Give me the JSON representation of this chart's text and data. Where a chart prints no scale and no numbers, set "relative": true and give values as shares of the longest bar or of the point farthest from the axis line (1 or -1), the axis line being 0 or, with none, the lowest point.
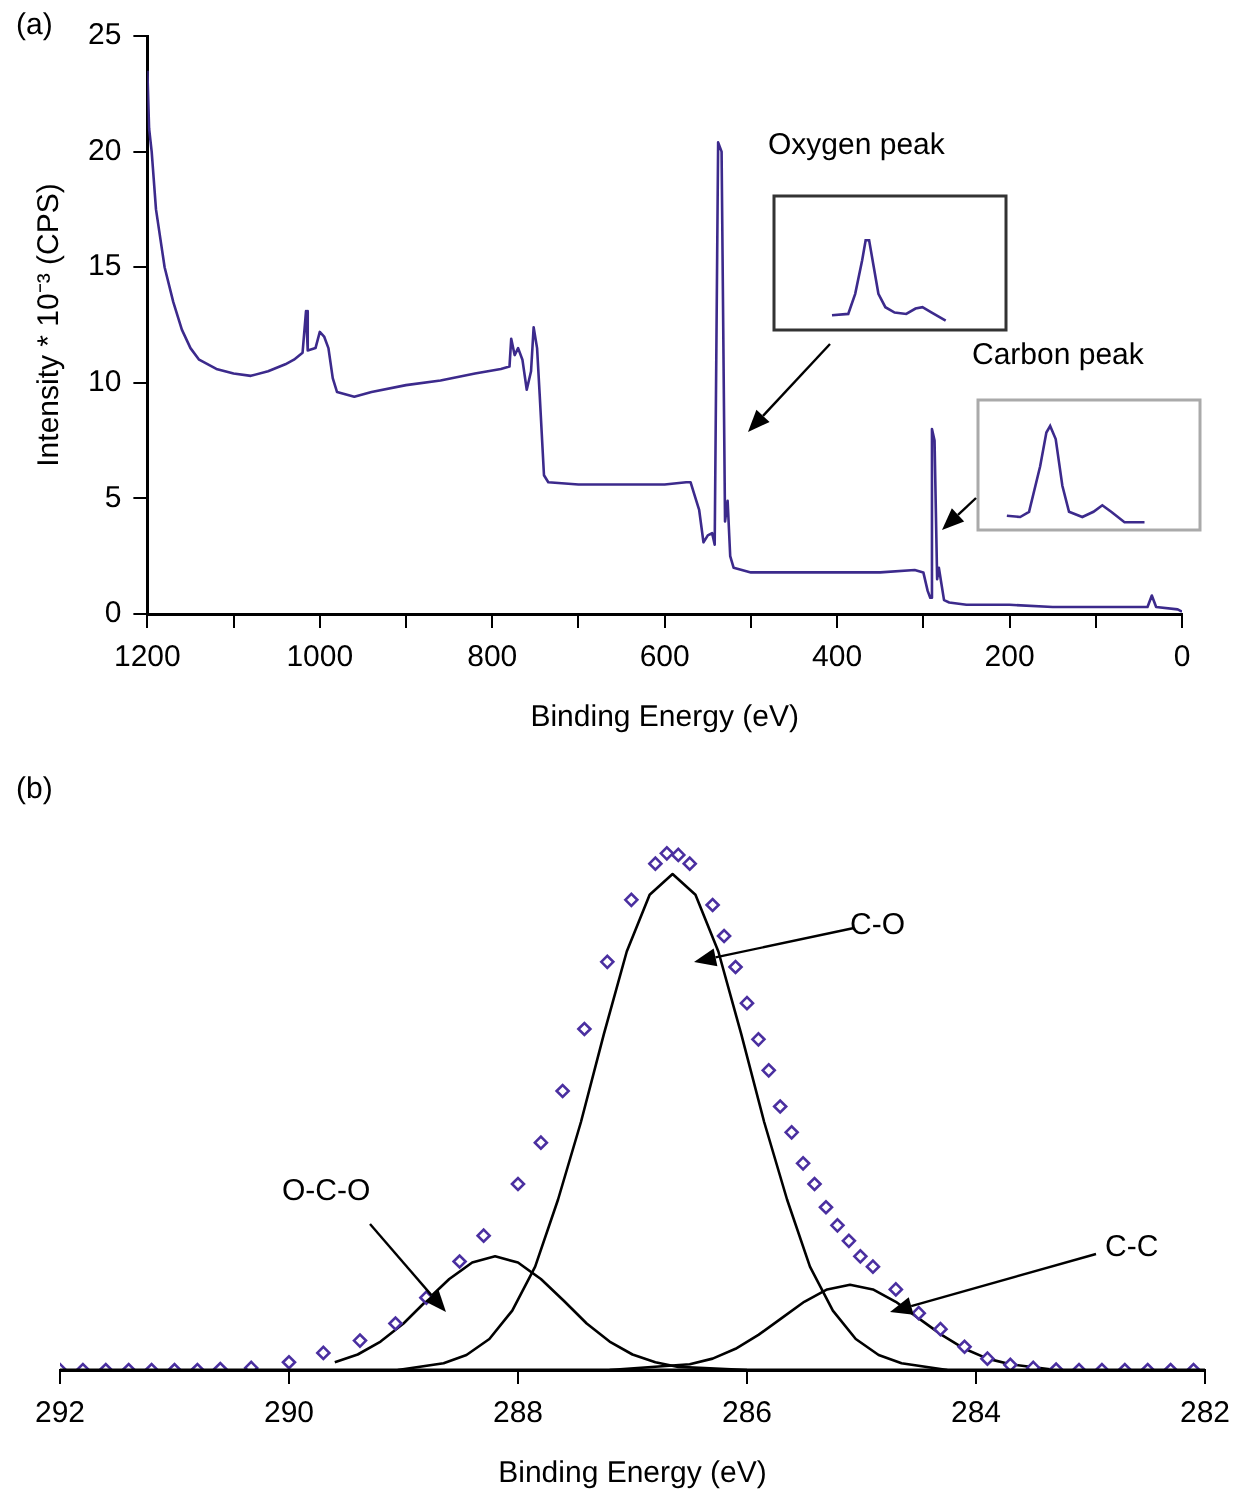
{
  "chart_data": [
    {
      "type": "line",
      "title": "(a)",
      "xlabel": "Binding Energy (eV)",
      "ylabel": "Intensity * 10⁻³ (CPS)",
      "xlim": [
        1200,
        0
      ],
      "xticks": [
        1200,
        {
          "value": 1100,
          "label": null
        },
        1000,
        {
          "value": 900,
          "label": null
        },
        800,
        {
          "value": 700,
          "label": null
        },
        600,
        {
          "value": 500,
          "label": null
        },
        400,
        {
          "value": 300,
          "label": null
        },
        200,
        {
          "value": 100,
          "label": null
        },
        0
      ],
      "ylim": [
        0,
        25
      ],
      "yticks": [
        0,
        5,
        10,
        15,
        20,
        25
      ],
      "annotations": [
        "Oxygen peak",
        "Carbon peak"
      ],
      "series": [
        {
          "color": "#3c2a8c",
          "x": [
            1200,
            1198,
            1195,
            1190,
            1180,
            1170,
            1160,
            1150,
            1140,
            1120,
            1100,
            1080,
            1060,
            1040,
            1030,
            1020,
            1016,
            1014,
            1005,
            1000,
            995,
            990,
            985,
            980,
            960,
            940,
            900,
            860,
            820,
            790,
            780,
            778,
            774,
            770,
            765,
            760,
            755,
            752,
            748,
            745,
            740,
            735,
            700,
            650,
            600,
            575,
            570,
            565,
            560,
            555,
            550,
            545,
            542,
            538,
            534,
            530,
            527,
            524,
            520,
            500,
            450,
            400,
            350,
            310,
            300,
            295,
            292,
            290,
            287,
            284,
            282,
            279,
            276,
            270,
            250,
            200,
            150,
            100,
            40,
            35,
            30,
            5,
            0
          ],
          "values": [
            23.5,
            21,
            20,
            17.5,
            15,
            13.5,
            12.3,
            11.5,
            11,
            10.6,
            10.4,
            10.3,
            10.5,
            10.8,
            11,
            11.3,
            13.1,
            11.4,
            11.5,
            12.2,
            12,
            11.5,
            10.2,
            9.6,
            9.4,
            9.6,
            9.9,
            10.1,
            10.4,
            10.6,
            10.7,
            11.9,
            11.2,
            11.5,
            11,
            9.7,
            10.5,
            12.4,
            11.5,
            9.5,
            6,
            5.7,
            5.6,
            5.6,
            5.6,
            5.7,
            5.7,
            5.1,
            4.5,
            3.1,
            3.4,
            3.5,
            3,
            20.4,
            20,
            4,
            4.9,
            2.5,
            2,
            1.8,
            1.8,
            1.8,
            1.8,
            1.9,
            1.8,
            1,
            0.7,
            8,
            7.5,
            1.5,
            2,
            1.3,
            0.6,
            0.5,
            0.4,
            0.4,
            0.3,
            0.3,
            0.3,
            0.8,
            0.3,
            0.2,
            0.1
          ]
        }
      ]
    },
    {
      "type": "line",
      "title": "(b)",
      "xlabel": "Binding Energy (eV)",
      "relative": true,
      "tick_labels": "x",
      "xlim": [
        292,
        282
      ],
      "xticks": [
        292,
        290,
        288,
        286,
        284,
        282
      ],
      "annotations": [
        "C-O",
        "O-C-O",
        "C-C"
      ],
      "series": [
        {
          "type": "scatter",
          "marker": "diamond",
          "color": "#4a2fa0",
          "x": [
            292,
            291.8,
            291.6,
            291.4,
            291.2,
            291,
            290.8,
            290.6,
            290.33,
            290,
            289.7,
            289.38,
            289.07,
            288.8,
            288.51,
            288.3,
            288,
            287.8,
            287.61,
            287.42,
            287.22,
            287.01,
            286.8,
            286.7,
            286.6,
            286.5,
            286.3,
            286.2,
            286.1,
            286,
            285.9,
            285.81,
            285.71,
            285.61,
            285.51,
            285.41,
            285.31,
            285.21,
            285.11,
            285.01,
            284.9,
            284.7,
            284.5,
            284.31,
            284.1,
            283.9,
            283.7,
            283.5,
            283.3,
            283.1,
            282.9,
            282.7,
            282.5,
            282.3,
            282.1
          ],
          "values": [
            0,
            0,
            0,
            0,
            0,
            0,
            0,
            0.002,
            0.004,
            0.015,
            0.033,
            0.057,
            0.09,
            0.14,
            0.21,
            0.26,
            0.36,
            0.44,
            0.54,
            0.66,
            0.79,
            0.91,
            0.98,
            1,
            0.997,
            0.98,
            0.9,
            0.84,
            0.78,
            0.71,
            0.64,
            0.58,
            0.51,
            0.46,
            0.4,
            0.36,
            0.315,
            0.28,
            0.25,
            0.22,
            0.2,
            0.156,
            0.11,
            0.079,
            0.045,
            0.022,
            0.01,
            0.004,
            0.001,
            0,
            0,
            0,
            0,
            0,
            0
          ]
        },
        {
          "color": "#000000",
          "x": [
            289.05,
            288.65,
            288.45,
            288.25,
            288.05,
            287.85,
            287.65,
            287.45,
            287.25,
            287.05,
            286.85,
            286.65,
            286.45,
            286.25,
            286.05,
            285.85,
            285.65,
            285.45,
            285.25,
            285.05,
            284.85,
            284.65,
            284.25
          ],
          "values": [
            0,
            0.013,
            0.029,
            0.06,
            0.115,
            0.2,
            0.33,
            0.48,
            0.65,
            0.81,
            0.92,
            0.96,
            0.92,
            0.81,
            0.65,
            0.48,
            0.33,
            0.2,
            0.115,
            0.06,
            0.029,
            0.013,
            0
          ]
        },
        {
          "color": "#000000",
          "x": [
            289.6,
            289.4,
            289.2,
            289,
            288.8,
            288.6,
            288.4,
            288.2,
            288,
            287.8,
            287.6,
            287.4,
            287.2,
            287,
            286.8,
            286.6,
            286
          ],
          "values": [
            0.015,
            0.03,
            0.055,
            0.09,
            0.134,
            0.176,
            0.208,
            0.22,
            0.208,
            0.176,
            0.134,
            0.09,
            0.055,
            0.03,
            0.015,
            0.006,
            0
          ]
        },
        {
          "color": "#000000",
          "x": [
            287.2,
            286.5,
            286.3,
            286.1,
            285.9,
            285.7,
            285.5,
            285.3,
            285.1,
            284.9,
            284.7,
            284.5,
            284.3,
            284.1,
            283.9,
            283.7,
            283.3
          ],
          "values": [
            0,
            0.011,
            0.022,
            0.041,
            0.068,
            0.1,
            0.132,
            0.156,
            0.165,
            0.156,
            0.132,
            0.1,
            0.068,
            0.041,
            0.022,
            0.011,
            0
          ]
        }
      ]
    }
  ]
}
